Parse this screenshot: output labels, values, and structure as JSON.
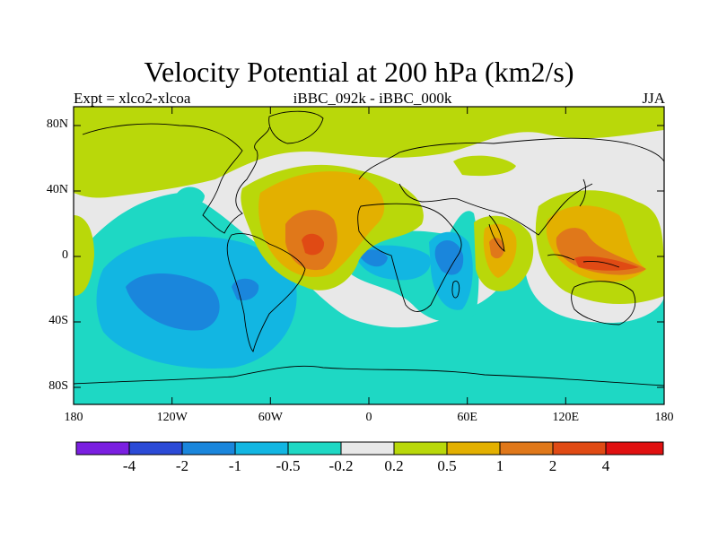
{
  "title": "Velocity Potential at 200 hPa (km2/s)",
  "subtitle_left": "Expt = xlco2-xlcoa",
  "subtitle_center": "iBBC_092k - iBBC_000k",
  "subtitle_right": "JJA",
  "lat_labels": [
    "80N",
    "40N",
    "0",
    "40S",
    "80S"
  ],
  "lon_labels": [
    "180",
    "120W",
    "60W",
    "0",
    "60E",
    "120E",
    "180"
  ],
  "colorbar": {
    "labels": [
      "-4",
      "-2",
      "-1",
      "-0.5",
      "-0.2",
      "0.2",
      "0.5",
      "1",
      "2",
      "4"
    ],
    "colors": [
      "#7a1fe0",
      "#2b4ad6",
      "#1a86dc",
      "#12b6e2",
      "#1ed8c4",
      "#e8e8e8",
      "#b9d80a",
      "#e3b000",
      "#e0781a",
      "#e04a14",
      "#e01010"
    ]
  },
  "colors": {
    "positive_small": "#b9d80a",
    "positive_mid": "#e3b000",
    "positive_large": "#e0781a",
    "positive_max": "#e04a14",
    "neutral": "#e8e8e8",
    "negative_small": "#1ed8c4",
    "negative_mid": "#12b6e2",
    "negative_large": "#1a86dc"
  }
}
